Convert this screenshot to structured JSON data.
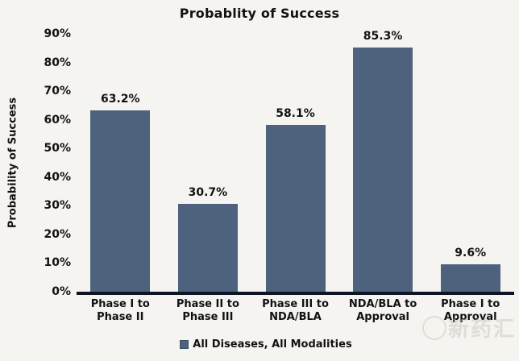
{
  "chart_data": {
    "type": "bar",
    "title": "Probablity of Success",
    "ylabel": "Probability of Success",
    "xlabel": "",
    "ylim": [
      0,
      90
    ],
    "ytick_step": 10,
    "ytick_labels": [
      "0%",
      "10%",
      "20%",
      "30%",
      "40%",
      "50%",
      "60%",
      "70%",
      "80%",
      "90%"
    ],
    "categories": [
      "Phase I to Phase II",
      "Phase II to Phase III",
      "Phase III to NDA/BLA",
      "NDA/BLA to Approval",
      "Phase I to Approval"
    ],
    "category_label_lines": [
      [
        "Phase I to",
        "Phase II"
      ],
      [
        "Phase II to",
        "Phase III"
      ],
      [
        "Phase III to",
        "NDA/BLA"
      ],
      [
        "NDA/BLA to",
        "Approval"
      ],
      [
        "Phase I to",
        "Approval"
      ]
    ],
    "values": [
      63.2,
      30.7,
      58.1,
      85.3,
      9.6
    ],
    "data_labels": [
      "63.2%",
      "30.7%",
      "58.1%",
      "85.3%",
      "9.6%"
    ],
    "grid": false,
    "legend": {
      "position": "bottom",
      "entries": [
        {
          "label": "All Diseases, All Modalities",
          "color": "#4e627e"
        }
      ]
    }
  },
  "colors": {
    "background": "#f5f4f0",
    "bar": "#4e627e",
    "axis_line": "#0e1524",
    "text": "#121212",
    "watermark": "#bdbab2"
  },
  "watermark": {
    "text": "新药汇"
  }
}
